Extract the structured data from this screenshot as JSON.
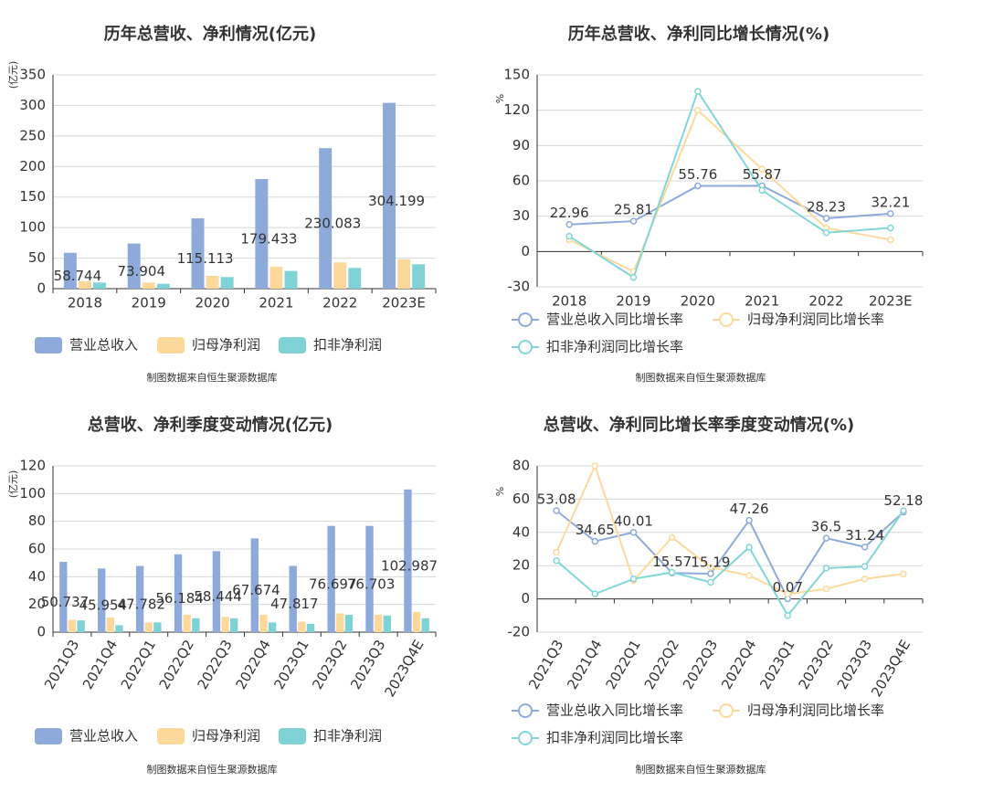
{
  "chart_data": [
    {
      "type": "bar",
      "title": "历年总营收、净利情况(亿元)",
      "y_label": "(亿元)",
      "categories": [
        "2018",
        "2019",
        "2020",
        "2021",
        "2022",
        "2023E"
      ],
      "series": [
        {
          "name": "营业总收入",
          "color": "#8eaadb",
          "values": [
            58.744,
            73.904,
            115.113,
            179.433,
            230.083,
            304.199
          ],
          "show_labels": true
        },
        {
          "name": "归母净利润",
          "color": "#fdd89b",
          "values": [
            12,
            10,
            21,
            36,
            43,
            48
          ]
        },
        {
          "name": "扣非净利润",
          "color": "#7fd3d6",
          "values": [
            10,
            8,
            19,
            29,
            34,
            40
          ]
        }
      ],
      "ylim": [
        0,
        350
      ],
      "yticks": [
        0,
        50,
        100,
        150,
        200,
        250,
        300,
        350
      ],
      "grid": true,
      "source": "制图数据来自恒生聚源数据库"
    },
    {
      "type": "line",
      "title": "历年总营收、净利同比增长情况(%)",
      "y_label": "%",
      "categories": [
        "2018",
        "2019",
        "2020",
        "2021",
        "2022",
        "2023E"
      ],
      "series": [
        {
          "name": "营业总收入同比增长率",
          "color": "#8faadc",
          "values": [
            22.96,
            25.81,
            55.76,
            55.87,
            28.23,
            32.21
          ],
          "show_labels": true
        },
        {
          "name": "归母净利润同比增长率",
          "color": "#fcd99d",
          "values": [
            10,
            -17,
            120,
            70,
            20,
            10
          ]
        },
        {
          "name": "扣非净利润同比增长率",
          "color": "#83d6d8",
          "values": [
            13,
            -22,
            136,
            52,
            16,
            20
          ]
        }
      ],
      "ylim": [
        -30,
        150
      ],
      "yticks": [
        -30,
        0,
        30,
        60,
        90,
        120,
        150
      ],
      "grid": true,
      "source": "制图数据来自恒生聚源数据库"
    },
    {
      "type": "bar",
      "title": "总营收、净利季度变动情况(亿元)",
      "y_label": "(亿元)",
      "categories": [
        "2021Q3",
        "2021Q4",
        "2022Q1",
        "2022Q2",
        "2022Q3",
        "2022Q4",
        "2023Q1",
        "2023Q2",
        "2023Q3",
        "2023Q4E"
      ],
      "series": [
        {
          "name": "营业总收入",
          "color": "#8eaadb",
          "values": [
            50.737,
            45.954,
            47.782,
            56.184,
            58.444,
            67.674,
            47.817,
            76.697,
            76.703,
            102.987
          ],
          "show_labels": true
        },
        {
          "name": "归母净利润",
          "color": "#fdd89b",
          "values": [
            9,
            10.5,
            7,
            12.5,
            11,
            12.5,
            7.5,
            13.5,
            12.5,
            14.5
          ]
        },
        {
          "name": "扣非净利润",
          "color": "#7fd3d6",
          "values": [
            8.5,
            5,
            7,
            10,
            10,
            7,
            6,
            12.5,
            12,
            10
          ]
        }
      ],
      "ylim": [
        0,
        120
      ],
      "yticks": [
        0,
        20,
        40,
        60,
        80,
        100,
        120
      ],
      "grid": true,
      "source": "制图数据来自恒生聚源数据库"
    },
    {
      "type": "line",
      "title": "总营收、净利同比增长率季度变动情况(%)",
      "y_label": "%",
      "categories": [
        "2021Q3",
        "2021Q4",
        "2022Q1",
        "2022Q2",
        "2022Q3",
        "2022Q4",
        "2023Q1",
        "2023Q2",
        "2023Q3",
        "2023Q4E"
      ],
      "series": [
        {
          "name": "营业总收入同比增长率",
          "color": "#8faadc",
          "values": [
            53.08,
            34.65,
            40.01,
            15.57,
            15.19,
            47.26,
            0.07,
            36.5,
            31.24,
            52.18
          ],
          "show_labels": true
        },
        {
          "name": "归母净利润同比增长率",
          "color": "#fcd99d",
          "values": [
            28,
            80,
            11,
            37,
            19,
            14,
            3,
            6,
            12,
            15
          ]
        },
        {
          "name": "扣非净利润同比增长率",
          "color": "#83d6d8",
          "values": [
            23,
            3,
            12,
            16,
            10,
            31,
            -10,
            18.5,
            19.5,
            53
          ]
        }
      ],
      "ylim": [
        -20,
        80
      ],
      "yticks": [
        -20,
        0,
        20,
        40,
        60,
        80
      ],
      "grid": true,
      "source": "制图数据来自恒生聚源数据库"
    }
  ]
}
